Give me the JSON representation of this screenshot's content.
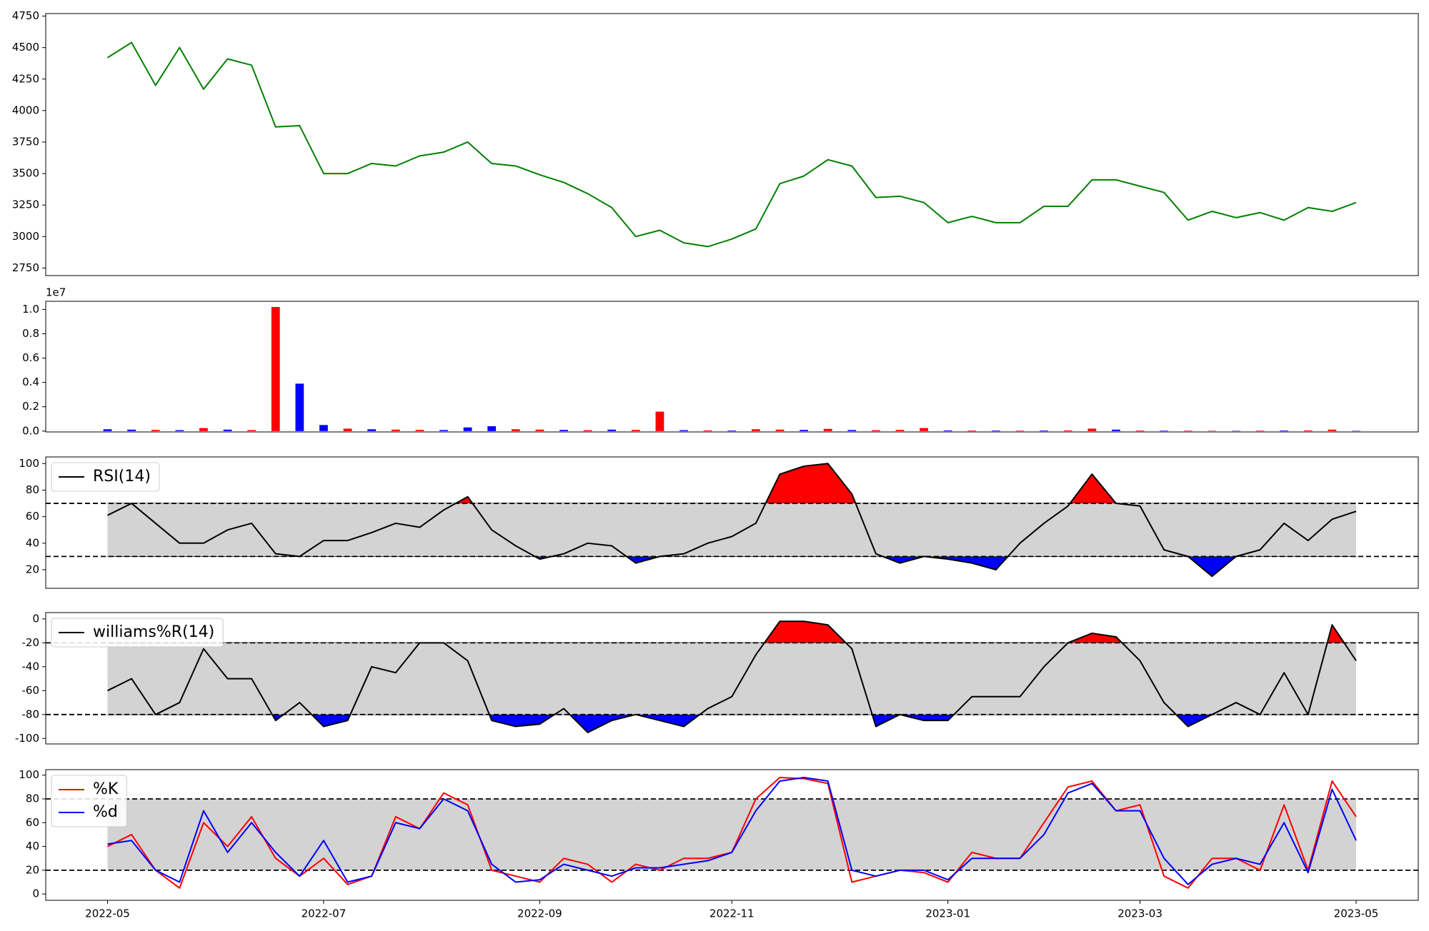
{
  "chart_data": [
    {
      "type": "line",
      "color": "#008000",
      "values": [
        4420,
        4540,
        4200,
        4500,
        4170,
        4410,
        4360,
        3870,
        3880,
        3500,
        3500,
        3580,
        3560,
        3640,
        3670,
        3750,
        3580,
        3560,
        3490,
        3430,
        3340,
        3230,
        3000,
        3050,
        2950,
        2920,
        2980,
        3060,
        3420,
        3480,
        3610,
        3560,
        3310,
        3320,
        3270,
        3110,
        3160,
        3110,
        3110,
        3240,
        3240,
        3450,
        3450,
        3400,
        3350,
        3130,
        3200,
        3150,
        3190,
        3130,
        3230,
        3200,
        3270
      ],
      "ylim": [
        2690,
        4770
      ],
      "yticks": [
        2750,
        3000,
        3250,
        3500,
        3750,
        4000,
        4250,
        4500,
        4750
      ]
    },
    {
      "type": "bar",
      "offset_text": "1e7",
      "values": [
        150000,
        120000,
        100000,
        80000,
        250000,
        120000,
        90000,
        10200000,
        3900000,
        500000,
        200000,
        150000,
        120000,
        100000,
        90000,
        300000,
        400000,
        150000,
        120000,
        100000,
        80000,
        120000,
        100000,
        1600000,
        80000,
        60000,
        50000,
        150000,
        120000,
        100000,
        180000,
        90000,
        80000,
        100000,
        250000,
        60000,
        50000,
        50000,
        40000,
        50000,
        60000,
        200000,
        120000,
        50000,
        40000,
        40000,
        30000,
        30000,
        40000,
        50000,
        60000,
        120000,
        30000
      ],
      "colors": [
        "blue",
        "blue",
        "red",
        "blue",
        "red",
        "blue",
        "red",
        "red",
        "blue",
        "blue",
        "red",
        "blue",
        "red",
        "red",
        "blue",
        "blue",
        "blue",
        "red",
        "red",
        "blue",
        "red",
        "blue",
        "red",
        "red",
        "blue",
        "red",
        "blue",
        "red",
        "red",
        "blue",
        "red",
        "blue",
        "red",
        "red",
        "red",
        "blue",
        "red",
        "blue",
        "red",
        "blue",
        "red",
        "red",
        "blue",
        "red",
        "blue",
        "red",
        "red",
        "blue",
        "red",
        "blue",
        "red",
        "red",
        "blue"
      ],
      "ylim": [
        -70000,
        10670000
      ],
      "yticks": [
        {
          "value": 0,
          "label": "0.0"
        },
        {
          "value": 2000000,
          "label": "0.2"
        },
        {
          "value": 4000000,
          "label": "0.4"
        },
        {
          "value": 6000000,
          "label": "0.6"
        },
        {
          "value": 8000000,
          "label": "0.8"
        },
        {
          "value": 10000000,
          "label": "1.0"
        }
      ]
    },
    {
      "type": "line",
      "legend": "upper left",
      "hlines": [
        70,
        30
      ],
      "band_color": "#d3d3d3",
      "fill_above": "red",
      "fill_below": "blue",
      "series": [
        {
          "name": "RSI(14)",
          "color": "#000000",
          "values": [
            61,
            70,
            55,
            40,
            40,
            50,
            55,
            32,
            30,
            42,
            42,
            48,
            55,
            52,
            65,
            75,
            50,
            38,
            28,
            32,
            40,
            38,
            25,
            30,
            32,
            40,
            45,
            55,
            92,
            98,
            100,
            77,
            32,
            25,
            30,
            28,
            25,
            20,
            40,
            55,
            68,
            92,
            70,
            68,
            35,
            30,
            15,
            30,
            35,
            55,
            42,
            58,
            64
          ]
        }
      ],
      "ylim": [
        6,
        105
      ],
      "yticks": [
        20,
        40,
        60,
        80,
        100
      ]
    },
    {
      "type": "line",
      "legend": "upper left",
      "hlines": [
        -20,
        -80
      ],
      "band_color": "#d3d3d3",
      "fill_above": "red",
      "fill_below": "blue",
      "series": [
        {
          "name": "williams%R(14)",
          "color": "#000000",
          "values": [
            -60,
            -50,
            -80,
            -70,
            -25,
            -50,
            -50,
            -85,
            -70,
            -90,
            -85,
            -40,
            -45,
            -20,
            -20,
            -35,
            -85,
            -90,
            -88,
            -75,
            -95,
            -85,
            -80,
            -85,
            -90,
            -75,
            -65,
            -30,
            -2,
            -2,
            -5,
            -25,
            -90,
            -80,
            -85,
            -85,
            -65,
            -65,
            -65,
            -40,
            -20,
            -12,
            -15,
            -35,
            -70,
            -90,
            -80,
            -70,
            -80,
            -45,
            -80,
            -5,
            -35
          ]
        }
      ],
      "ylim": [
        -104.6,
        5.3
      ],
      "yticks": [
        -100,
        -80,
        -60,
        -40,
        -20,
        0
      ]
    },
    {
      "type": "line",
      "legend": "upper left",
      "hlines": [
        80,
        20
      ],
      "band_color": "#d3d3d3",
      "series": [
        {
          "name": "%K",
          "color": "#ff0000",
          "values": [
            40,
            50,
            20,
            5,
            60,
            40,
            65,
            30,
            15,
            30,
            8,
            15,
            65,
            55,
            85,
            75,
            20,
            15,
            10,
            30,
            25,
            10,
            25,
            20,
            30,
            30,
            35,
            80,
            98,
            97,
            93,
            10,
            15,
            20,
            18,
            10,
            35,
            30,
            30,
            60,
            90,
            95,
            70,
            75,
            15,
            5,
            30,
            30,
            20,
            75,
            20,
            95,
            65
          ]
        },
        {
          "name": "%d",
          "color": "#0000ff",
          "values": [
            42,
            45,
            20,
            10,
            70,
            35,
            60,
            35,
            15,
            45,
            10,
            15,
            60,
            55,
            80,
            70,
            25,
            10,
            12,
            25,
            20,
            15,
            22,
            22,
            25,
            28,
            35,
            70,
            95,
            98,
            95,
            20,
            15,
            20,
            20,
            12,
            30,
            30,
            30,
            50,
            85,
            93,
            70,
            70,
            30,
            8,
            25,
            30,
            25,
            60,
            18,
            88,
            45
          ]
        }
      ],
      "ylim": [
        -5.3,
        104.6
      ],
      "yticks": [
        0,
        20,
        40,
        60,
        80,
        100
      ],
      "categories": [
        "2022-05",
        null,
        null,
        null,
        null,
        null,
        null,
        null,
        null,
        "2022-07",
        null,
        null,
        null,
        null,
        null,
        null,
        null,
        null,
        "2022-09",
        null,
        null,
        null,
        null,
        null,
        null,
        null,
        "2022-11",
        null,
        null,
        null,
        null,
        null,
        null,
        null,
        null,
        "2023-01",
        null,
        null,
        null,
        null,
        null,
        null,
        null,
        "2023-03",
        null,
        null,
        null,
        null,
        null,
        null,
        null,
        null,
        "2023-05"
      ]
    }
  ]
}
